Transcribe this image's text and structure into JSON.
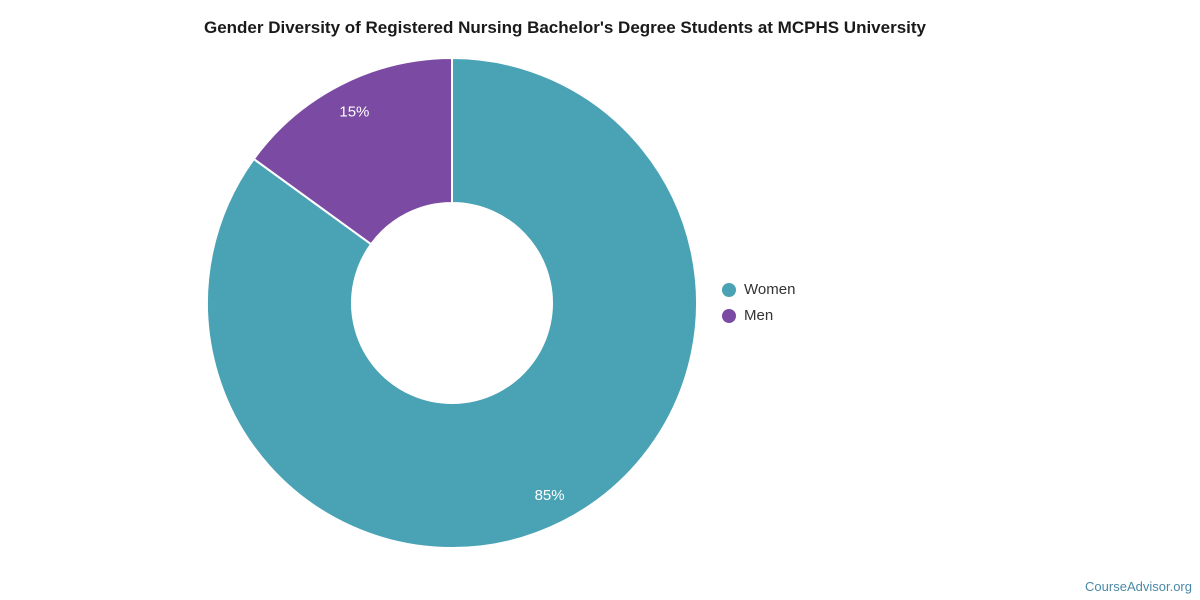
{
  "title": "Gender Diversity of Registered Nursing Bachelor's Degree Students at MCPHS University",
  "footer": {
    "watermark": "CourseAdvisor.org",
    "color": "#4a89a8"
  },
  "chart_data": {
    "type": "pie",
    "subtype": "donut",
    "title": "Gender Diversity of Registered Nursing Bachelor's Degree Students at MCPHS University",
    "labels": [
      "Women",
      "Men"
    ],
    "values": [
      85,
      15
    ],
    "colors": [
      "#4aa2b5",
      "#7b4aa2"
    ],
    "data_labels": [
      "85%",
      "15%"
    ],
    "data_label_color": "#ffffff",
    "legend_position": "right",
    "start_angle_deg": 0,
    "direction": "clockwise"
  }
}
